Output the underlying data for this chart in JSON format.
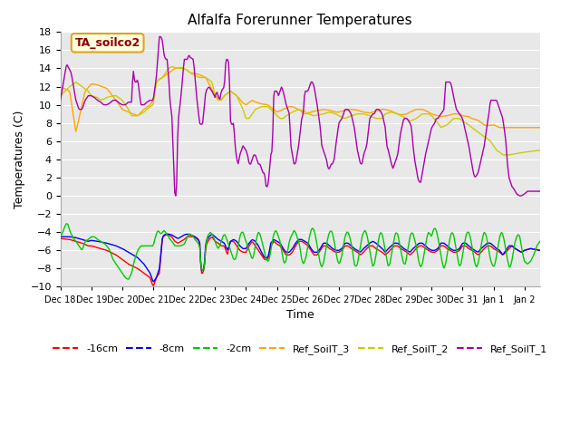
{
  "title": "Alfalfa Forerunner Temperatures",
  "xlabel": "Time",
  "ylabel": "Temperatures (C)",
  "ylim": [
    -10,
    18
  ],
  "annotation": "TA_soilco2",
  "legend": [
    "-16cm",
    "-8cm",
    "-2cm",
    "Ref_SoilT_3",
    "Ref_SoilT_2",
    "Ref_SoilT_1"
  ],
  "colors": {
    "-16cm": "#ff0000",
    "-8cm": "#0000ff",
    "-2cm": "#00cc00",
    "Ref_SoilT_3": "#ffa500",
    "Ref_SoilT_2": "#cccc00",
    "Ref_SoilT_1": "#aa00aa"
  },
  "xtick_labels": [
    "Dec 18",
    "Dec 19",
    "Dec 20",
    "Dec 21",
    "Dec 22",
    "Dec 23",
    "Dec 24",
    "Dec 25",
    "Dec 26",
    "Dec 27",
    "Dec 28",
    "Dec 29",
    "Dec 30",
    "Dec 31",
    "Jan 1",
    "Jan 2"
  ],
  "yticks": [
    -10,
    -8,
    -6,
    -4,
    -2,
    0,
    2,
    4,
    6,
    8,
    10,
    12,
    14,
    16,
    18
  ]
}
